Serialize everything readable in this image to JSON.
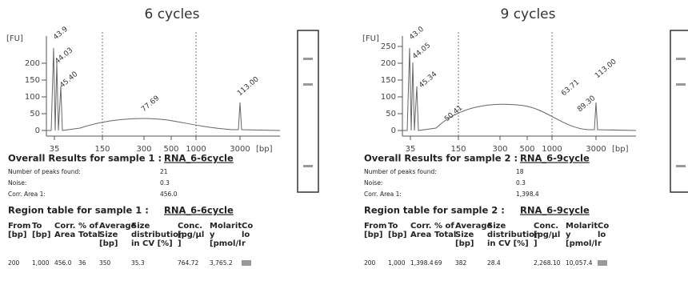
{
  "panels": [
    {
      "title": "6 cycles",
      "y_axis_label": "[FU]",
      "y_ticks": [
        "0",
        "50",
        "100",
        "150",
        "200"
      ],
      "x_ticks": [
        "35",
        "150",
        "300",
        "500",
        "1000",
        "3000"
      ],
      "x_unit": "[bp]",
      "peak_labels": [
        "43.9",
        "44.03",
        "45.40",
        "77.69",
        "113.00"
      ],
      "overall": {
        "heading": "Overall Results for sample 1 :",
        "sample": "RNA_6-6cycle",
        "rows": [
          [
            "Number of peaks found:",
            "21"
          ],
          [
            "Noise:",
            "0.3"
          ],
          [
            "Corr. Area 1:",
            "456.0"
          ]
        ]
      },
      "region": {
        "heading": "Region table for sample 1 :",
        "sample": "RNA_6-6cycle",
        "columns": [
          [
            "From",
            "[bp]"
          ],
          [
            "To",
            "[bp]"
          ],
          [
            "Corr.",
            "Area"
          ],
          [
            "% of",
            "Total"
          ],
          [
            "Average",
            "Size",
            "[bp]"
          ],
          [
            "Size",
            "distribution",
            "in CV [%]"
          ],
          [
            "Conc.",
            "[pg/µl",
            "]"
          ],
          [
            "Molarit",
            "y",
            "[pmol/l"
          ],
          [
            "Co",
            "lo",
            "r"
          ]
        ],
        "rows": [
          [
            "200",
            "1,000",
            "456.0",
            "36",
            "350",
            "35.3",
            "764.72",
            "3,765.2"
          ]
        ]
      }
    },
    {
      "title": "9 cycles",
      "y_axis_label": "[FU]",
      "y_ticks": [
        "0",
        "50",
        "100",
        "150",
        "200",
        "250"
      ],
      "x_ticks": [
        "35",
        "150",
        "300",
        "500",
        "1000",
        "3000"
      ],
      "x_unit": "[bp]",
      "peak_labels": [
        "43.0",
        "44.05",
        "45.34",
        "50.41",
        "63.71",
        "89.30",
        "113.00"
      ],
      "overall": {
        "heading": "Overall Results for sample 2 :",
        "sample": "RNA_6-9cycle",
        "rows": [
          [
            "Number of peaks found:",
            "18"
          ],
          [
            "Noise:",
            "0.3"
          ],
          [
            "Corr. Area 1:",
            "1,398.4"
          ]
        ]
      },
      "region": {
        "heading": "Region table for sample 2 :",
        "sample": "RNA_6-9cycle",
        "columns": [
          [
            "From",
            "[bp]"
          ],
          [
            "To",
            "[bp]"
          ],
          [
            "Corr.",
            "Area"
          ],
          [
            "% of",
            "Total"
          ],
          [
            "Average",
            "Size",
            "[bp]"
          ],
          [
            "Size",
            "distribution",
            "in CV [%]"
          ],
          [
            "Conc.",
            "[pg/µl",
            "]"
          ],
          [
            "Molarit",
            "y",
            "[pmol/l"
          ],
          [
            "Co",
            "lo",
            "r"
          ]
        ],
        "rows": [
          [
            "200",
            "1,000",
            "1,398.4",
            "69",
            "382",
            "28.4",
            "2,268.10",
            "10,057.4"
          ]
        ]
      }
    }
  ]
}
